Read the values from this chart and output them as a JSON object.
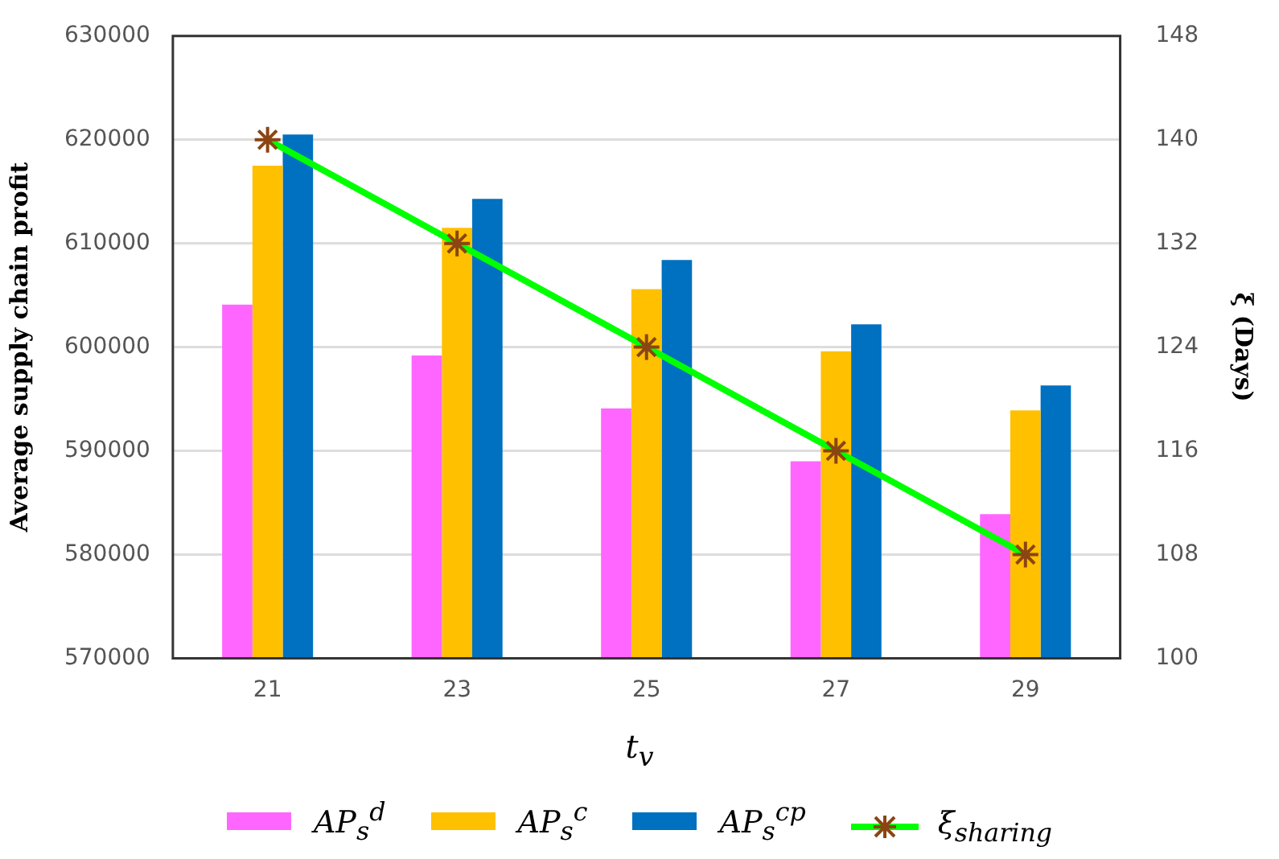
{
  "chart_data": {
    "type": "bar",
    "xlabel": "t$_{v}$",
    "ylabel": "Average supply chain profit",
    "y2label": "ξ (Days)",
    "categories": [
      "21",
      "23",
      "25",
      "27",
      "29"
    ],
    "series": [
      {
        "name": "AP$_{s}$$^{d}$",
        "color": "#ff66ff",
        "values": [
          604100,
          599200,
          594100,
          589000,
          583900
        ]
      },
      {
        "name": "AP$_{s}$$^{c}$",
        "color": "#ffc000",
        "values": [
          617500,
          611500,
          605600,
          599600,
          593900
        ]
      },
      {
        "name": "AP$_{s}$$^{cp}$",
        "color": "#0070c0",
        "values": [
          620500,
          614300,
          608400,
          602200,
          596300
        ]
      },
      {
        "name": "ξ$_{sharing}$",
        "type": "line",
        "axis": "y2",
        "color": "#00ff00",
        "values": [
          140,
          132,
          124,
          116,
          108
        ]
      }
    ],
    "ylim": [
      570000,
      630000
    ],
    "yticks": [
      570000,
      580000,
      590000,
      600000,
      610000,
      620000,
      630000
    ],
    "y2lim": [
      100,
      148
    ],
    "y2ticks": [
      100,
      108,
      116,
      124,
      132,
      140,
      148
    ],
    "grid": "y",
    "legend": "bottom",
    "marker": "cross",
    "line_style": "solid"
  }
}
